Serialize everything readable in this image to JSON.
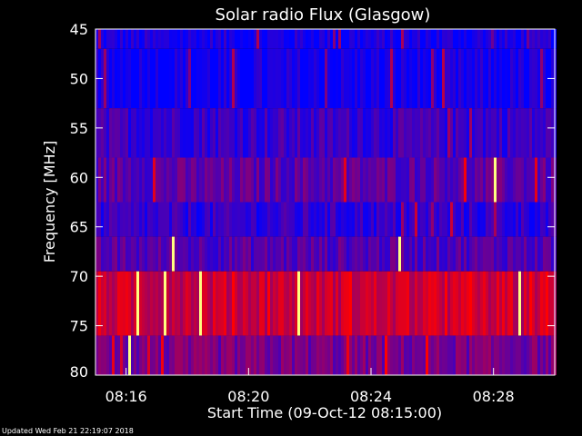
{
  "chart_data": {
    "type": "heatmap",
    "title": "Solar radio Flux (Glasgow)",
    "xlabel": "Start Time (09-Oct-12 08:15:00)",
    "ylabel": "Frequency [MHz]",
    "x_tick_labels": [
      "08:16",
      "08:20",
      "08:24",
      "08:28"
    ],
    "x_tick_minutes": [
      1,
      5,
      9,
      13
    ],
    "x_range_minutes": [
      0,
      15
    ],
    "y_tick_labels": [
      "45",
      "50",
      "55",
      "60",
      "65",
      "70",
      "75",
      "80"
    ],
    "y_tick_values": [
      45,
      50,
      55,
      60,
      65,
      70,
      75,
      80
    ],
    "y_range": [
      45,
      80
    ],
    "y_reversed": true,
    "bands": [
      {
        "from": 45,
        "to": 47,
        "level": 0.08
      },
      {
        "from": 47,
        "to": 53,
        "level": 0.05
      },
      {
        "from": 53,
        "to": 58,
        "level": 0.22
      },
      {
        "from": 58,
        "to": 62.5,
        "level": 0.35
      },
      {
        "from": 62.5,
        "to": 66,
        "level": 0.18
      },
      {
        "from": 66,
        "to": 69.5,
        "level": 0.32
      },
      {
        "from": 69.5,
        "to": 76,
        "level": 0.78
      },
      {
        "from": 76,
        "to": 80,
        "level": 0.45
      }
    ],
    "colors": {
      "low": "#0000ff",
      "high": "#ff0000",
      "peak": "#ffff80"
    }
  },
  "footer": {
    "updated": "Updated Wed Feb 21 22:19:07 2018"
  }
}
